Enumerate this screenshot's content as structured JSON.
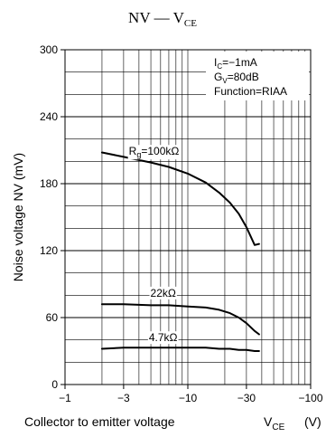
{
  "chart_data": {
    "type": "line",
    "title": {
      "main": "NV",
      "dash": "—",
      "v": "V",
      "sub": "CE"
    },
    "xlabel": {
      "text": "Collector to emitter voltage",
      "v": "V",
      "sub": "CE",
      "unit": "(V)"
    },
    "ylabel": "Noise voltage  NV   (mV)",
    "x_scale": "log",
    "x_ticks": [
      {
        "value": -1,
        "label": "−1"
      },
      {
        "value": -3,
        "label": "−3"
      },
      {
        "value": -10,
        "label": "−10"
      },
      {
        "value": -30,
        "label": "−30"
      },
      {
        "value": -100,
        "label": "−100"
      }
    ],
    "y_ticks": [
      0,
      60,
      120,
      180,
      240,
      300
    ],
    "xlim": [
      -1,
      -100
    ],
    "ylim": [
      0,
      300
    ],
    "grid": true,
    "conditions": {
      "ic": {
        "base": "I",
        "sub": "C",
        "val": "=−1mA"
      },
      "gv": {
        "base": "G",
        "sub": "V",
        "val": "=80dB"
      },
      "function": "Function=RIAA"
    },
    "series": [
      {
        "name": "100kΩ",
        "label_parts": {
          "base": "R",
          "sub": "g",
          "val": "=100kΩ"
        },
        "label_at": {
          "x": -5.3,
          "y": 209
        },
        "x": [
          -2,
          -3,
          -5,
          -7,
          -10,
          -14,
          -18,
          -22,
          -26,
          -30,
          -35,
          -38
        ],
        "y": [
          208,
          204,
          199,
          195,
          189,
          181,
          172,
          163,
          153,
          141,
          125,
          126
        ]
      },
      {
        "name": "22kΩ",
        "label_parts": {
          "base": "22kΩ",
          "sub": "",
          "val": ""
        },
        "label_at": {
          "x": -6.3,
          "y": 82
        },
        "x": [
          -2,
          -3,
          -5,
          -7,
          -10,
          -14,
          -18,
          -22,
          -26,
          -30,
          -35,
          -38
        ],
        "y": [
          72,
          72,
          71,
          71,
          70,
          69,
          67,
          64,
          60,
          55,
          48,
          45
        ]
      },
      {
        "name": "4.7kΩ",
        "label_parts": {
          "base": "4.7kΩ",
          "sub": "",
          "val": ""
        },
        "label_at": {
          "x": -6.3,
          "y": 42
        },
        "x": [
          -2,
          -3,
          -5,
          -7,
          -10,
          -14,
          -18,
          -22,
          -26,
          -30,
          -35,
          -38
        ],
        "y": [
          32,
          33,
          33,
          33,
          33,
          33,
          32,
          32,
          31,
          31,
          30,
          30
        ]
      }
    ]
  }
}
